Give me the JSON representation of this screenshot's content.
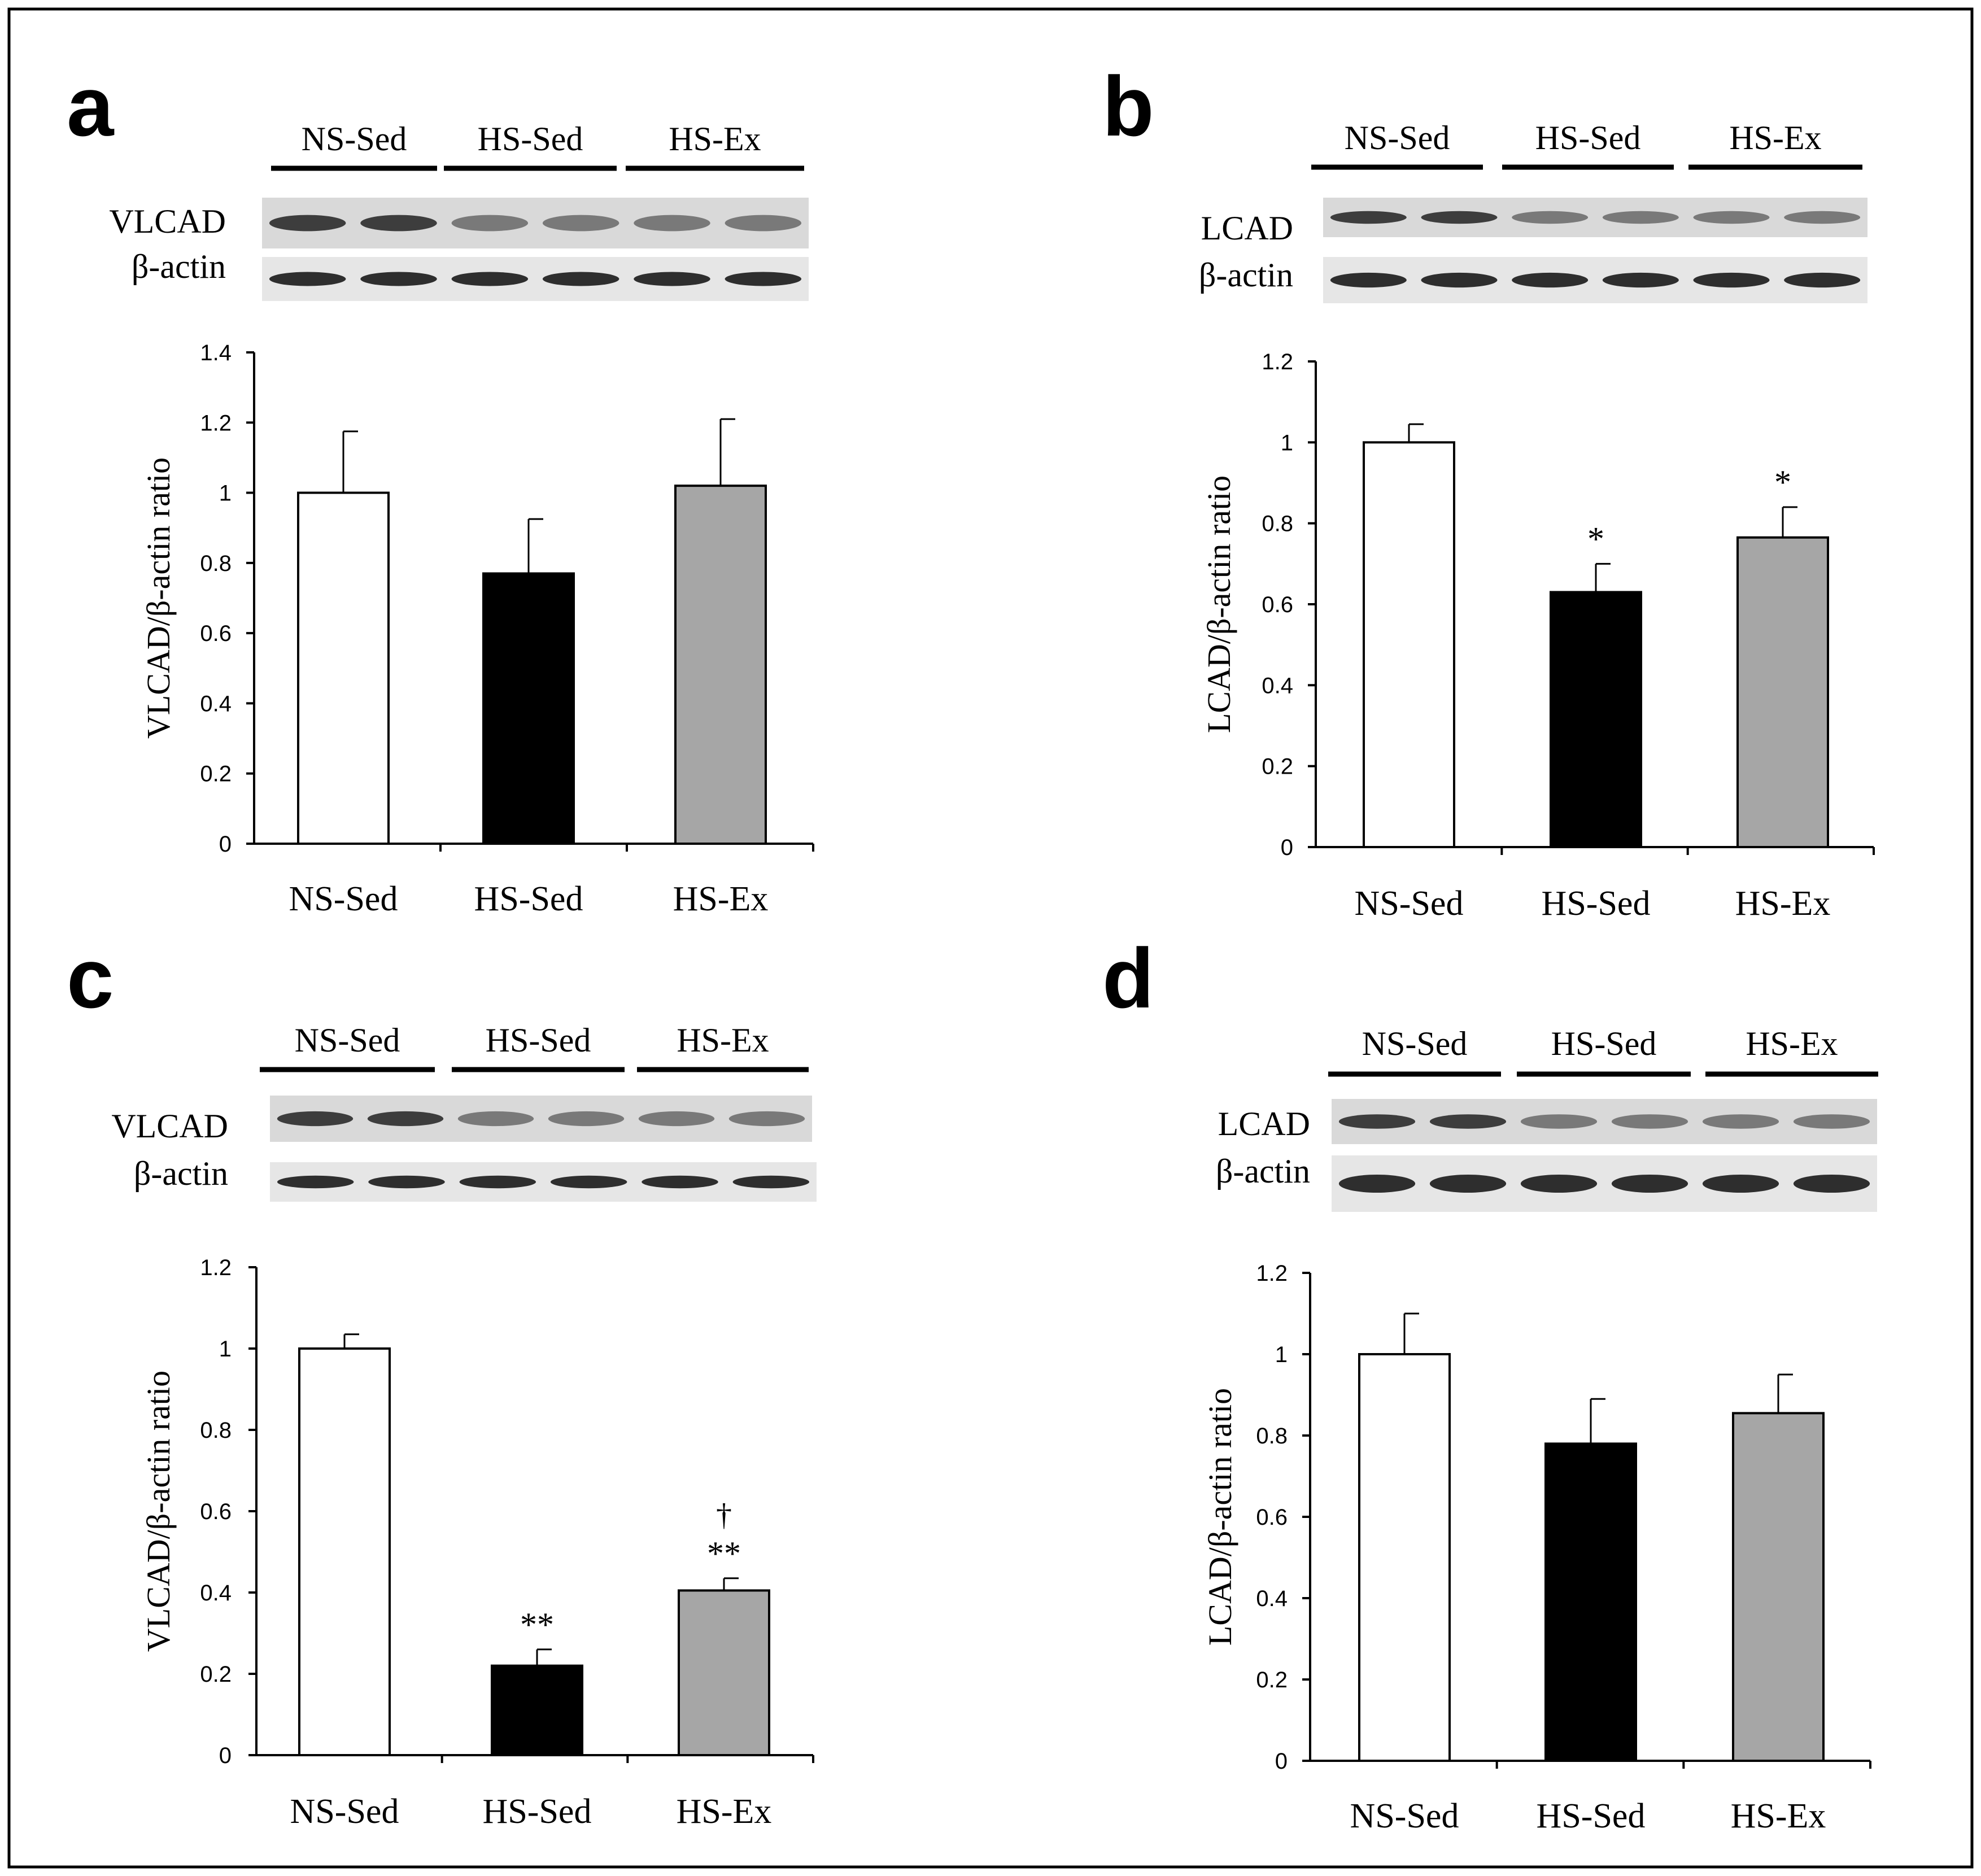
{
  "figure": {
    "panels": [
      {
        "letter": "a",
        "blot": {
          "groups": [
            "NS-Sed",
            "HS-Sed",
            "HS-Ex"
          ],
          "rows": [
            "VLCAD",
            "β-actin"
          ]
        }
      },
      {
        "letter": "b",
        "blot": {
          "groups": [
            "NS-Sed",
            "HS-Sed",
            "HS-Ex"
          ],
          "rows": [
            "LCAD",
            "β-actin"
          ]
        }
      },
      {
        "letter": "c",
        "blot": {
          "groups": [
            "NS-Sed",
            "HS-Sed",
            "HS-Ex"
          ],
          "rows": [
            "VLCAD",
            "β-actin"
          ]
        }
      },
      {
        "letter": "d",
        "blot": {
          "groups": [
            "NS-Sed",
            "HS-Sed",
            "HS-Ex"
          ],
          "rows": [
            "LCAD",
            "β-actin"
          ]
        }
      }
    ]
  },
  "colors": {
    "ns_sed": "#ffffff",
    "hs_sed": "#000000",
    "hs_ex": "#a6a6a6",
    "outline": "#000000"
  },
  "chart_data": [
    {
      "type": "bar",
      "panel": "a",
      "categories": [
        "NS-Sed",
        "HS-Sed",
        "HS-Ex"
      ],
      "values": [
        1.0,
        0.77,
        1.02
      ],
      "errors": [
        0.175,
        0.155,
        0.19
      ],
      "annotations": [
        "",
        "",
        ""
      ],
      "ylabel": "VLCAD/β-actin ratio",
      "ylim": [
        0,
        1.4
      ],
      "yticks": [
        0,
        0.2,
        0.4,
        0.6,
        0.8,
        1,
        1.2,
        1.4
      ],
      "yticklabels": [
        "0",
        "0.2",
        "0.4",
        "0.6",
        "0.8",
        "1",
        "1.2",
        "1.4"
      ]
    },
    {
      "type": "bar",
      "panel": "b",
      "categories": [
        "NS-Sed",
        "HS-Sed",
        "HS-Ex"
      ],
      "values": [
        1.0,
        0.63,
        0.765
      ],
      "errors": [
        0.045,
        0.07,
        0.075
      ],
      "annotations": [
        "",
        "*",
        "*"
      ],
      "ylabel": "LCAD/β-actin ratio",
      "ylim": [
        0,
        1.2
      ],
      "yticks": [
        0,
        0.2,
        0.4,
        0.6,
        0.8,
        1,
        1.2
      ],
      "yticklabels": [
        "0",
        "0.2",
        "0.4",
        "0.6",
        "0.8",
        "1",
        "1.2"
      ]
    },
    {
      "type": "bar",
      "panel": "c",
      "categories": [
        "NS-Sed",
        "HS-Sed",
        "HS-Ex"
      ],
      "values": [
        1.0,
        0.22,
        0.405
      ],
      "errors": [
        0.035,
        0.04,
        0.03
      ],
      "annotations": [
        "",
        "**",
        "**"
      ],
      "annotations2": [
        "",
        "",
        "†"
      ],
      "ylabel": "VLCAD/β-actin ratio",
      "ylim": [
        0,
        1.2
      ],
      "yticks": [
        0,
        0.2,
        0.4,
        0.6,
        0.8,
        1,
        1.2
      ],
      "yticklabels": [
        "0",
        "0.2",
        "0.4",
        "0.6",
        "0.8",
        "1",
        "1.2"
      ]
    },
    {
      "type": "bar",
      "panel": "d",
      "categories": [
        "NS-Sed",
        "HS-Sed",
        "HS-Ex"
      ],
      "values": [
        1.0,
        0.78,
        0.855
      ],
      "errors": [
        0.1,
        0.11,
        0.095
      ],
      "annotations": [
        "",
        "",
        ""
      ],
      "ylabel": "LCAD/β-actin ratio",
      "ylim": [
        0,
        1.2
      ],
      "yticks": [
        0,
        0.2,
        0.4,
        0.6,
        0.8,
        1,
        1.2
      ],
      "yticklabels": [
        "0",
        "0.2",
        "0.4",
        "0.6",
        "0.8",
        "1",
        "1.2"
      ]
    }
  ]
}
